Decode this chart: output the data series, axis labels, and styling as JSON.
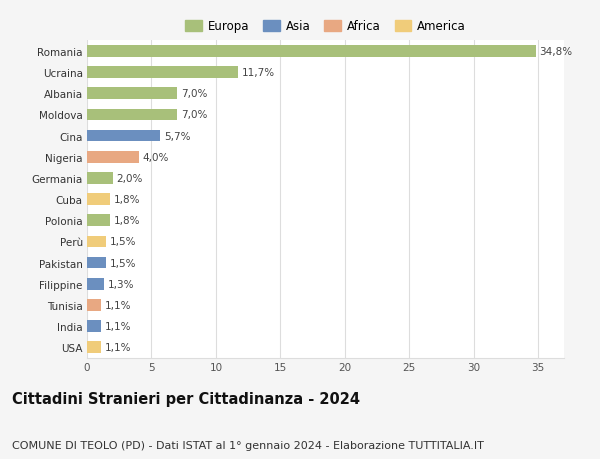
{
  "countries": [
    "Romania",
    "Ucraina",
    "Albania",
    "Moldova",
    "Cina",
    "Nigeria",
    "Germania",
    "Cuba",
    "Polonia",
    "Perù",
    "Pakistan",
    "Filippine",
    "Tunisia",
    "India",
    "USA"
  ],
  "values": [
    34.8,
    11.7,
    7.0,
    7.0,
    5.7,
    4.0,
    2.0,
    1.8,
    1.8,
    1.5,
    1.5,
    1.3,
    1.1,
    1.1,
    1.1
  ],
  "labels": [
    "34,8%",
    "11,7%",
    "7,0%",
    "7,0%",
    "5,7%",
    "4,0%",
    "2,0%",
    "1,8%",
    "1,8%",
    "1,5%",
    "1,5%",
    "1,3%",
    "1,1%",
    "1,1%",
    "1,1%"
  ],
  "continents": [
    "Europa",
    "Europa",
    "Europa",
    "Europa",
    "Asia",
    "Africa",
    "Europa",
    "America",
    "Europa",
    "America",
    "Asia",
    "Asia",
    "Africa",
    "Asia",
    "America"
  ],
  "colors": {
    "Europa": "#a8c07a",
    "Asia": "#6b8fbf",
    "Africa": "#e8a882",
    "America": "#f0cc7a"
  },
  "legend_order": [
    "Europa",
    "Asia",
    "Africa",
    "America"
  ],
  "title": "Cittadini Stranieri per Cittadinanza - 2024",
  "subtitle": "COMUNE DI TEOLO (PD) - Dati ISTAT al 1° gennaio 2024 - Elaborazione TUTTITALIA.IT",
  "xlim": [
    0,
    37
  ],
  "xticks": [
    0,
    5,
    10,
    15,
    20,
    25,
    30,
    35
  ],
  "background_color": "#f5f5f5",
  "plot_bg_color": "#ffffff",
  "grid_color": "#dddddd",
  "title_fontsize": 10.5,
  "subtitle_fontsize": 8,
  "label_fontsize": 7.5,
  "tick_fontsize": 7.5,
  "legend_fontsize": 8.5,
  "bar_height": 0.55
}
